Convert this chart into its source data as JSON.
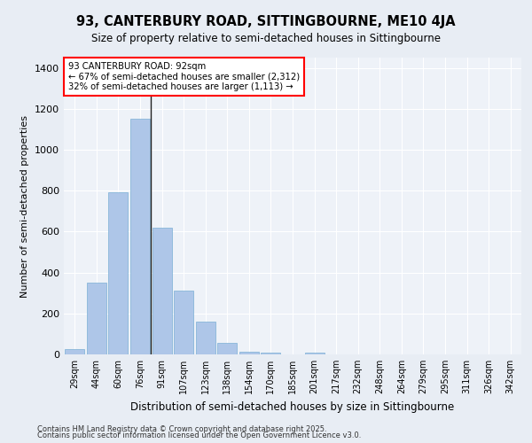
{
  "title1": "93, CANTERBURY ROAD, SITTINGBOURNE, ME10 4JA",
  "title2": "Size of property relative to semi-detached houses in Sittingbourne",
  "xlabel": "Distribution of semi-detached houses by size in Sittingbourne",
  "ylabel": "Number of semi-detached properties",
  "categories": [
    "29sqm",
    "44sqm",
    "60sqm",
    "76sqm",
    "91sqm",
    "107sqm",
    "123sqm",
    "138sqm",
    "154sqm",
    "170sqm",
    "185sqm",
    "201sqm",
    "217sqm",
    "232sqm",
    "248sqm",
    "264sqm",
    "279sqm",
    "295sqm",
    "311sqm",
    "326sqm",
    "342sqm"
  ],
  "values": [
    25,
    350,
    790,
    1150,
    620,
    310,
    160,
    55,
    15,
    10,
    0,
    7,
    0,
    0,
    0,
    0,
    0,
    0,
    0,
    0,
    0
  ],
  "bar_color": "#aec6e8",
  "bar_edge_color": "#7bafd4",
  "vline_index": 4,
  "property_size": "92sqm",
  "property_name": "93 CANTERBURY ROAD",
  "pct_smaller": 67,
  "n_smaller": 2312,
  "pct_larger": 32,
  "n_larger": 1113,
  "ylim": [
    0,
    1450
  ],
  "yticks": [
    0,
    200,
    400,
    600,
    800,
    1000,
    1200,
    1400
  ],
  "bg_color": "#e8edf4",
  "plot_bg_color": "#eef2f8",
  "footer1": "Contains HM Land Registry data © Crown copyright and database right 2025.",
  "footer2": "Contains public sector information licensed under the Open Government Licence v3.0."
}
